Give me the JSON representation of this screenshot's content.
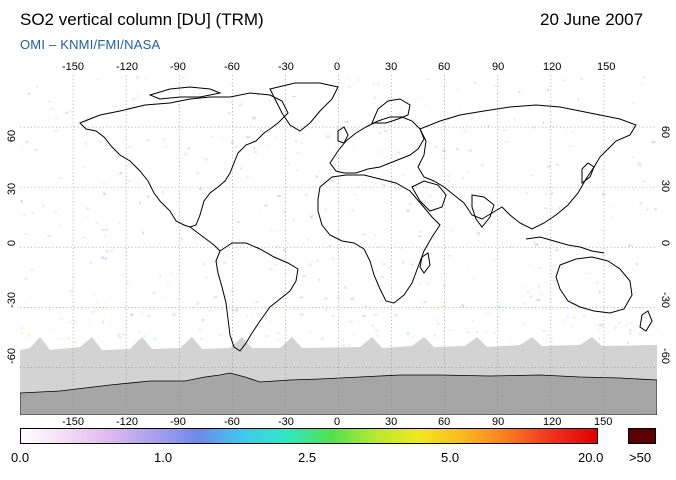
{
  "header": {
    "title": "SO2 vertical column [DU] (TRM)",
    "date": "20 June 2007",
    "credit": "OMI  –  KNMI/FMI/NASA"
  },
  "map": {
    "lon_ticks": [
      "-150",
      "-120",
      "-90",
      "-60",
      "-30",
      "0",
      "30",
      "60",
      "90",
      "120",
      "150"
    ],
    "lat_ticks": [
      "60",
      "30",
      "0",
      "-30",
      "-60"
    ],
    "no_data_color": "#d3d3d3",
    "land_mask_color": "#a6a6a6",
    "trace_colors": [
      "#f2d6f2",
      "#d9c4f0",
      "#c6d8f4",
      "#b8f0e8",
      "#e8f6b8"
    ]
  },
  "colorbar": {
    "labels": [
      "0.0",
      "1.0",
      "2.5",
      "5.0",
      "20.0"
    ],
    "overflow_label": ">50",
    "overflow_color": "#5a0000",
    "gradient_colors": [
      "#ffffff",
      "#f4dcf6",
      "#e0b8f0",
      "#a9a0ee",
      "#6e8ae8",
      "#40c8f0",
      "#30e8c0",
      "#50e050",
      "#b8e830",
      "#f0e820",
      "#f8b820",
      "#f87a20",
      "#f03020",
      "#e00000"
    ]
  }
}
